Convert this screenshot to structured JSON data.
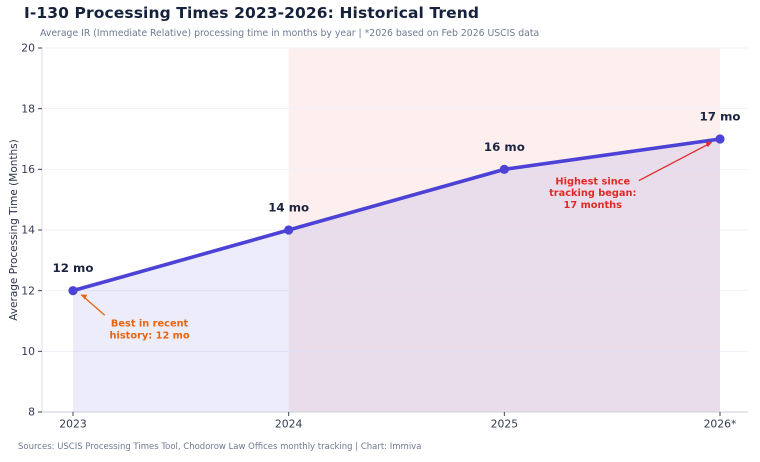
{
  "header": {
    "title": "I-130 Processing Times 2023-2026: Historical Trend",
    "subtitle": "Average IR (Immediate Relative) processing time in months by year | *2026 based on Feb 2026 USCIS data"
  },
  "footer": {
    "sources": "Sources: USCIS Processing Times Tool, Chodorow Law Offices monthly tracking | Chart: Immiva"
  },
  "chart_data": {
    "type": "line",
    "title": "I-130 Processing Times 2023-2026: Historical Trend",
    "categories": [
      "2023",
      "2024",
      "2025",
      "2026*"
    ],
    "series": [
      {
        "name": "Average IR processing time (months)",
        "values": [
          12,
          14,
          16,
          17
        ]
      }
    ],
    "point_labels": [
      "12 mo",
      "14 mo",
      "16 mo",
      "17 mo"
    ],
    "xlabel": "",
    "ylabel": "Average Processing Time (Months)",
    "ylim": [
      8,
      20
    ],
    "yticks": [
      8,
      10,
      12,
      14,
      16,
      18,
      20
    ],
    "grid": "horizontal",
    "legend": "none",
    "line_color": "#4d42d6",
    "marker_color": "#4d42d6",
    "area_fill_color": "rgba(77,66,214,0.10)",
    "highlight_band": {
      "from": "2024",
      "to": "2026*",
      "color": "#fcefee"
    },
    "label_color": "#1b2440",
    "tick_color": "#353c52",
    "annotations": [
      {
        "id": "best-in-history",
        "text": "Best in recent\nhistory: 12 mo",
        "color": "#e8650d",
        "target_category": "2023",
        "target_value": 12,
        "label_x": 0.355,
        "label_y": 10.75
      },
      {
        "id": "highest-since-tracking",
        "text": "Highest since\ntracking began:\n17 months",
        "color": "#e12a26",
        "target_category": "2026*",
        "target_value": 17,
        "label_x": 2.41,
        "label_y": 15.25
      }
    ]
  }
}
